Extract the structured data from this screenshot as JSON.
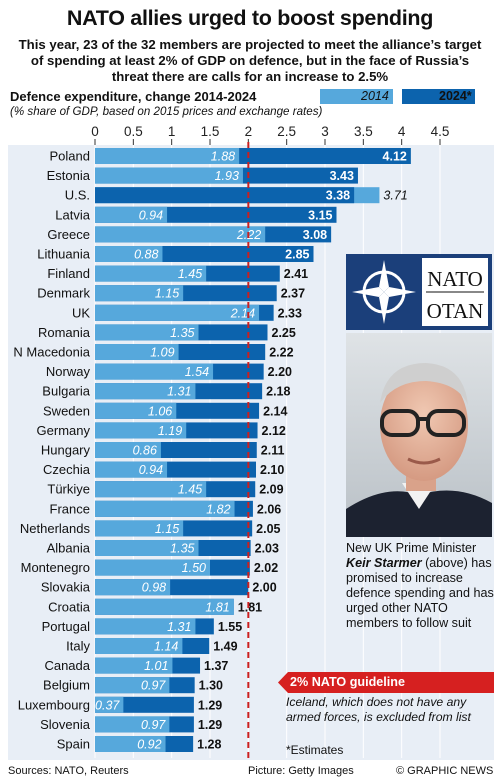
{
  "header": {
    "title": "NATO allies urged to boost spending",
    "subtitle": "This year, 23 of the 32 members are projected to meet the alliance’s target of spending at least 2% of GDP on defence, but in the face of Russia’s threat there are calls for an increase to 2.5%"
  },
  "colors": {
    "series_2014": "#56a8dc",
    "series_2024": "#0c63ad",
    "panel_background": "#e8eef6",
    "guideline": "#cc1f1f",
    "banner": "#d62020"
  },
  "chart_data": {
    "type": "bar",
    "orientation": "horizontal",
    "title": "Defence expenditure, change 2014-2024",
    "subtitle": "(% share of GDP, based on 2015 prices and exchange rates)",
    "xlim": [
      0,
      4.5
    ],
    "x_ticks": [
      "0",
      "0.5",
      "1",
      "1.5",
      "2",
      "2.5",
      "3",
      "3.5",
      "4",
      "4.5"
    ],
    "reference_line": {
      "value": 2,
      "label": "2% NATO guideline"
    },
    "legend": {
      "placement": "top-right",
      "entries": [
        "2014",
        "2024*"
      ]
    },
    "categories": [
      "Poland",
      "Estonia",
      "U.S.",
      "Latvia",
      "Greece",
      "Lithuania",
      "Finland",
      "Denmark",
      "UK",
      "Romania",
      "N Macedonia",
      "Norway",
      "Bulgaria",
      "Sweden",
      "Germany",
      "Hungary",
      "Czechia",
      "Türkiye",
      "France",
      "Netherlands",
      "Albania",
      "Montenegro",
      "Slovakia",
      "Croatia",
      "Portugal",
      "Italy",
      "Canada",
      "Belgium",
      "Luxembourg",
      "Slovenia",
      "Spain"
    ],
    "series": [
      {
        "name": "2014",
        "values": [
          1.88,
          1.93,
          3.71,
          0.94,
          2.22,
          0.88,
          1.45,
          1.15,
          2.14,
          1.35,
          1.09,
          1.54,
          1.31,
          1.06,
          1.19,
          0.86,
          0.94,
          1.45,
          1.82,
          1.15,
          1.35,
          1.5,
          0.98,
          1.81,
          1.31,
          1.14,
          1.01,
          0.97,
          0.37,
          0.97,
          0.92
        ],
        "labels": [
          "1.88",
          "1.93",
          "3.71",
          "0.94",
          "2.22",
          "0.88",
          "1.45",
          "1.15",
          "2.14",
          "1.35",
          "1.09",
          "1.54",
          "1.31",
          "1.06",
          "1.19",
          "0.86",
          "0.94",
          "1.45",
          "1.82",
          "1.15",
          "1.35",
          "1.50",
          "0.98",
          "1.81",
          "1.31",
          "1.14",
          "1.01",
          "0.97",
          "0.37",
          "0.97",
          "0.92"
        ]
      },
      {
        "name": "2024*",
        "values": [
          4.12,
          3.43,
          3.38,
          3.15,
          3.08,
          2.85,
          2.41,
          2.37,
          2.33,
          2.25,
          2.22,
          2.2,
          2.18,
          2.14,
          2.12,
          2.11,
          2.1,
          2.09,
          2.06,
          2.05,
          2.03,
          2.02,
          2.0,
          1.81,
          1.55,
          1.49,
          1.37,
          1.3,
          1.29,
          1.29,
          1.28
        ],
        "labels": [
          "4.12",
          "3.43",
          "3.38",
          "3.15",
          "3.08",
          "2.85",
          "2.41",
          "2.37",
          "2.33",
          "2.25",
          "2.22",
          "2.20",
          "2.18",
          "2.14",
          "2.12",
          "2.11",
          "2.10",
          "2.09",
          "2.06",
          "2.05",
          "2.03",
          "2.02",
          "2.00",
          "1.81",
          "1.55",
          "1.49",
          "1.37",
          "1.30",
          "1.29",
          "1.29",
          "1.28"
        ]
      }
    ]
  },
  "logo": {
    "line1": "NATO",
    "line2": "OTAN"
  },
  "caption": {
    "before_name": "New UK Prime Minister ",
    "name": "Keir Starmer",
    "after_name": " (above) has promised to increase defence spending and has urged other NATO members to follow suit"
  },
  "notes": {
    "iceland": "Iceland, which does not have any armed forces, is excluded from list",
    "estimates": "*Estimates"
  },
  "footer": {
    "sources": "Sources: NATO, Reuters",
    "picture": "Picture: Getty Images",
    "copyright": "© GRAPHIC NEWS"
  }
}
